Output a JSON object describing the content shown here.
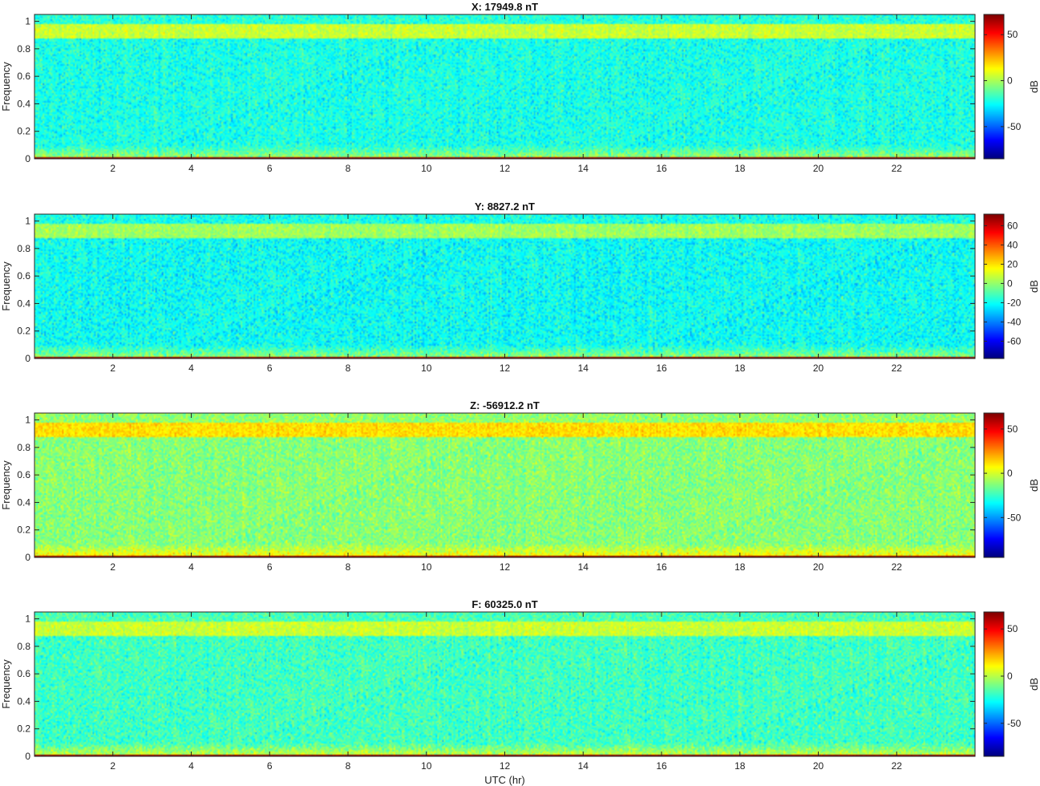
{
  "chart_data": [
    {
      "type": "heatmap",
      "title": "X: 17949.8 nT",
      "ylabel": "Frequency",
      "xlabel": "",
      "xlim": [
        0,
        24
      ],
      "ylim": [
        0,
        1.05
      ],
      "xticks": [
        2,
        4,
        6,
        8,
        10,
        12,
        14,
        16,
        18,
        20,
        22
      ],
      "yticks": [
        0,
        0.2,
        0.4,
        0.6,
        0.8,
        1
      ],
      "ytick_labels": [
        "0",
        "0.2",
        "0.4",
        "0.6",
        "0.8",
        "1"
      ],
      "colorbar": {
        "label": "dB",
        "range": [
          -85,
          72
        ],
        "ticks": [
          -50,
          0,
          50
        ]
      },
      "colormap": "jet",
      "structure": {
        "background_db": -22,
        "high_band": [
          0.88,
          0.98
        ],
        "high_band_db": 5,
        "dc_line_db": 70
      }
    },
    {
      "type": "heatmap",
      "title": "Y: 8827.2 nT",
      "ylabel": "Frequency",
      "xlabel": "",
      "xlim": [
        0,
        24
      ],
      "ylim": [
        0,
        1.05
      ],
      "xticks": [
        2,
        4,
        6,
        8,
        10,
        12,
        14,
        16,
        18,
        20,
        22
      ],
      "yticks": [
        0,
        0.2,
        0.4,
        0.6,
        0.8,
        1
      ],
      "ytick_labels": [
        "0",
        "0.2",
        "0.4",
        "0.6",
        "0.8",
        "1"
      ],
      "colorbar": {
        "label": "dB",
        "range": [
          -78,
          72
        ],
        "ticks": [
          -60,
          -40,
          -20,
          0,
          20,
          40,
          60
        ]
      },
      "colormap": "jet",
      "structure": {
        "background_db": -20,
        "high_band": [
          0.88,
          0.98
        ],
        "high_band_db": 2,
        "dc_line_db": 70
      }
    },
    {
      "type": "heatmap",
      "title": "Z: -56912.2 nT",
      "ylabel": "Frequency",
      "xlabel": "",
      "xlim": [
        0,
        24
      ],
      "ylim": [
        0,
        1.05
      ],
      "xticks": [
        2,
        4,
        6,
        8,
        10,
        12,
        14,
        16,
        18,
        20,
        22
      ],
      "yticks": [
        0,
        0.2,
        0.4,
        0.6,
        0.8,
        1
      ],
      "ytick_labels": [
        "0",
        "0.2",
        "0.4",
        "0.6",
        "0.8",
        "1"
      ],
      "colorbar": {
        "label": "dB",
        "range": [
          -95,
          68
        ],
        "ticks": [
          -50,
          0,
          50
        ]
      },
      "colormap": "jet",
      "structure": {
        "background_db": -12,
        "high_band": [
          0.88,
          0.98
        ],
        "high_band_db": 12,
        "dc_line_db": 66
      }
    },
    {
      "type": "heatmap",
      "title": "F: 60325.0 nT",
      "ylabel": "Frequency",
      "xlabel": "UTC (hr)",
      "xlim": [
        0,
        24
      ],
      "ylim": [
        0,
        1.05
      ],
      "xticks": [
        2,
        4,
        6,
        8,
        10,
        12,
        14,
        16,
        18,
        20,
        22
      ],
      "yticks": [
        0,
        0.2,
        0.4,
        0.6,
        0.8,
        1
      ],
      "ytick_labels": [
        "0",
        "0.2",
        "0.4",
        "0.6",
        "0.8",
        "1"
      ],
      "colorbar": {
        "label": "dB",
        "range": [
          -85,
          68
        ],
        "ticks": [
          -50,
          0,
          50
        ]
      },
      "colormap": "jet",
      "structure": {
        "background_db": -18,
        "high_band": [
          0.88,
          0.98
        ],
        "high_band_db": 3,
        "dc_line_db": 66
      }
    }
  ]
}
